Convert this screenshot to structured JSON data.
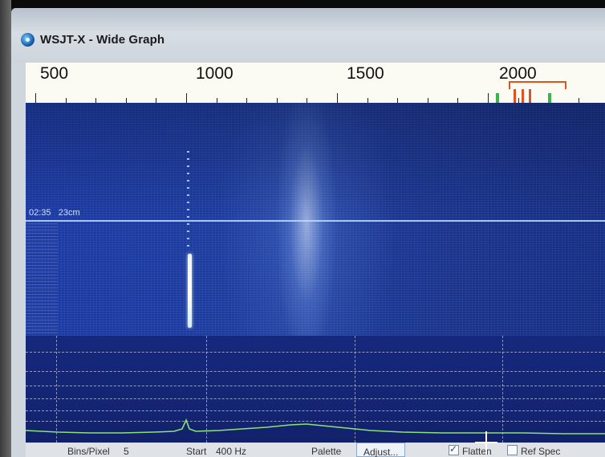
{
  "window": {
    "title": "WSJT-X - Wide Graph",
    "icon": "wsjtx-app-icon"
  },
  "frequency_scale": {
    "labels": [
      "500",
      "1000",
      "1500",
      "2000"
    ],
    "unit_note": ""
  },
  "waterfall": {
    "time_label": "02:35",
    "band_label": "23cm"
  },
  "controls": {
    "bins_per_pixel_label": "Bins/Pixel",
    "bins_per_pixel_value": "5",
    "start_label": "Start",
    "start_value": "400 Hz",
    "palette_label": "Palette",
    "adjust_label": "Adjust...",
    "flatten_label": "Flatten",
    "flatten_checked": true,
    "ref_spec_label": "Ref Spec",
    "ref_spec_checked": false
  },
  "colors": {
    "waterfall_blue": "#1b3aa6",
    "spectrum_bg": "#16287c",
    "spectrum_line": "#8ee07a",
    "marker_red": "#e0521e",
    "marker_green": "#39b54a"
  }
}
